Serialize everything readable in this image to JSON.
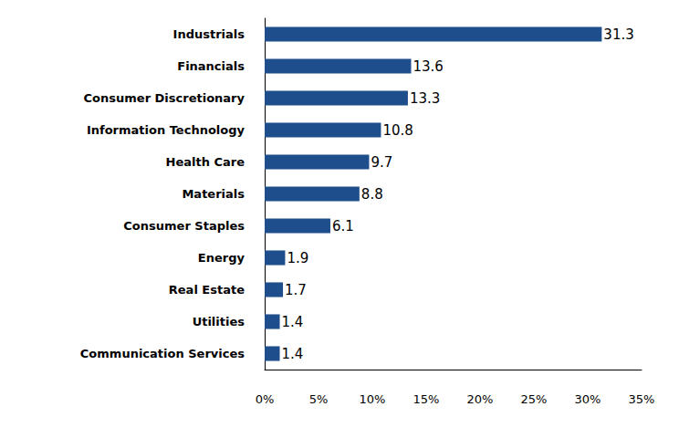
{
  "chart_data": {
    "type": "bar",
    "orientation": "horizontal",
    "categories": [
      "Industrials",
      "Financials",
      "Consumer Discretionary",
      "Information Technology",
      "Health Care",
      "Materials",
      "Consumer Staples",
      "Energy",
      "Real Estate",
      "Utilities",
      "Communication Services"
    ],
    "values": [
      31.3,
      13.6,
      13.3,
      10.8,
      9.7,
      8.8,
      6.1,
      1.9,
      1.7,
      1.4,
      1.4
    ],
    "color": "#1f4e8c",
    "xlim": [
      0,
      35
    ],
    "xticks": [
      {
        "value": 0,
        "label": "0%"
      },
      {
        "value": 5,
        "label": "5%"
      },
      {
        "value": 10,
        "label": "10%"
      },
      {
        "value": 15,
        "label": "15%"
      },
      {
        "value": 20,
        "label": "20%"
      },
      {
        "value": 25,
        "label": "25%"
      },
      {
        "value": 30,
        "label": "30%"
      },
      {
        "value": 35,
        "label": "35%"
      }
    ],
    "grid": false,
    "data_labels": true
  }
}
